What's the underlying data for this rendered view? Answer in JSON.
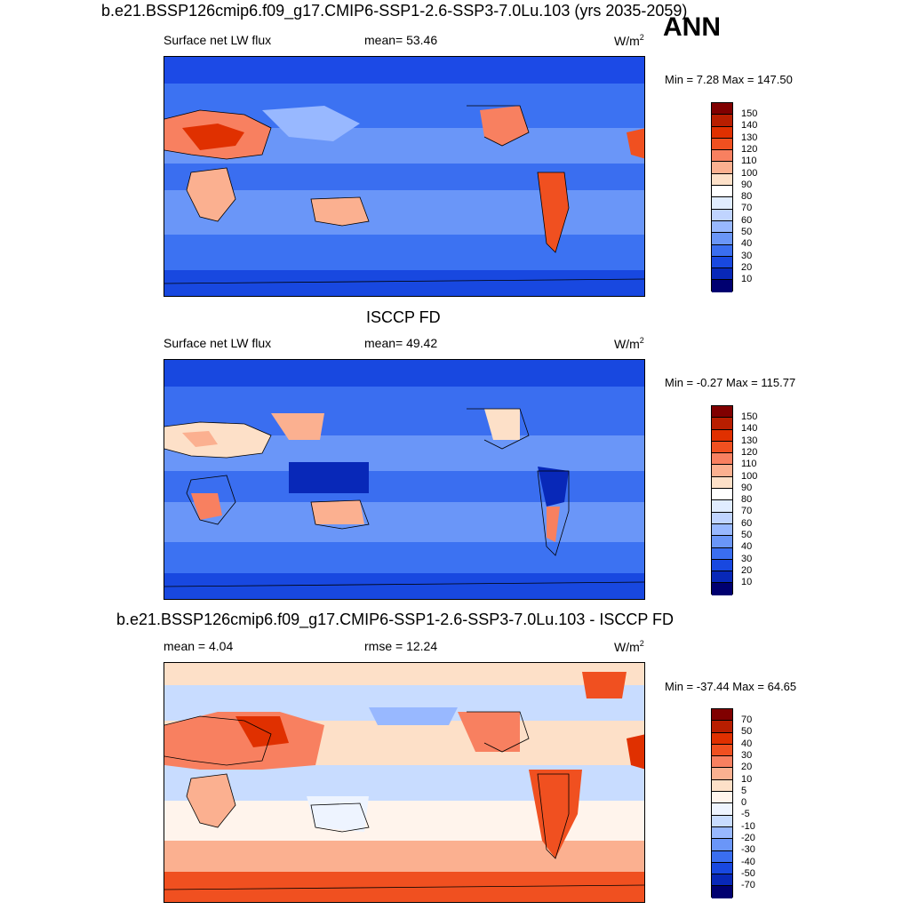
{
  "panel_case": {
    "title": "b.e21.BSSP126cmip6.f09_g17.CMIP6-SSP1-2.6-SSP3-7.0Lu.103 (yrs 2035-2059)",
    "variable": "Surface net LW flux",
    "stat": "mean=  53.46",
    "units": "W/m",
    "units_sup": "2",
    "minmax": "Min =   7.28 Max = 147.50",
    "levels": [
      "150",
      "140",
      "130",
      "120",
      "110",
      "100",
      "90",
      "80",
      "70",
      "60",
      "50",
      "40",
      "30",
      "20",
      "10"
    ]
  },
  "season": "ANN",
  "panel_obs": {
    "title": "ISCCP FD",
    "variable": "Surface net LW flux",
    "stat": "mean=  49.42",
    "units": "W/m",
    "units_sup": "2",
    "minmax": "Min =  -0.27 Max = 115.77",
    "levels": [
      "150",
      "140",
      "130",
      "120",
      "110",
      "100",
      "90",
      "80",
      "70",
      "60",
      "50",
      "40",
      "30",
      "20",
      "10"
    ]
  },
  "panel_diff": {
    "title": "b.e21.BSSP126cmip6.f09_g17.CMIP6-SSP1-2.6-SSP3-7.0Lu.103 - ISCCP FD",
    "mean_text": "mean =   4.04",
    "rmse_text": "rmse =  12.24",
    "units": "W/m",
    "units_sup": "2",
    "minmax": "Min = -37.44 Max =  64.65",
    "levels": [
      "70",
      "50",
      "40",
      "30",
      "20",
      "10",
      "5",
      "0",
      "-5",
      "-10",
      "-20",
      "-30",
      "-40",
      "-50",
      "-70"
    ]
  },
  "colors": {
    "abs_scale": [
      "#800000",
      "#b81e00",
      "#e03000",
      "#f05020",
      "#f88060",
      "#fbb090",
      "#fde0c8",
      "#e0ecff",
      "#c0d4ff",
      "#98b8ff",
      "#6a96f8",
      "#3a6ef0",
      "#1848e0",
      "#0828b8",
      "#001a80",
      "#000070"
    ],
    "diff_scale": [
      "#800000",
      "#b81e00",
      "#e03000",
      "#f05020",
      "#f88060",
      "#fbb090",
      "#fde0c8",
      "#fff4ec",
      "#eef4ff",
      "#c8dcff",
      "#98b8ff",
      "#6a96f8",
      "#3a6ef0",
      "#1848e0",
      "#0828b8",
      "#000070"
    ]
  }
}
